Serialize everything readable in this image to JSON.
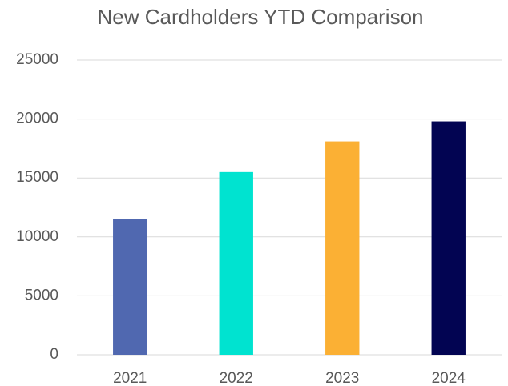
{
  "chart_data": {
    "type": "bar",
    "title": "New Cardholders YTD Comparison",
    "categories": [
      "2021",
      "2022",
      "2023",
      "2024"
    ],
    "values": [
      11500,
      15500,
      18100,
      19800
    ],
    "colors": [
      "#5068b0",
      "#00e3d0",
      "#fbb034",
      "#020452"
    ],
    "ylim": [
      0,
      25000
    ],
    "yticks": [
      0,
      5000,
      10000,
      15000,
      20000,
      25000
    ],
    "grid": true
  }
}
